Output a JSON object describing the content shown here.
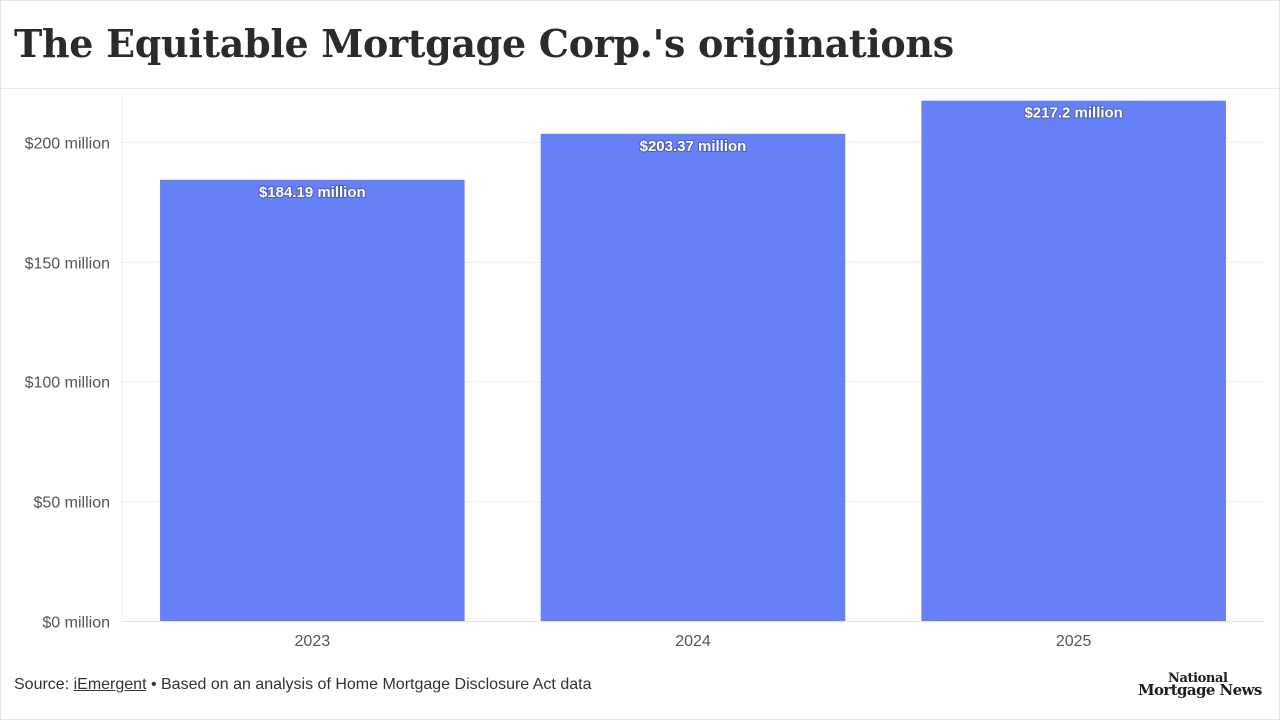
{
  "header": {
    "title": "The Equitable Mortgage Corp.'s originations"
  },
  "chart_data": {
    "type": "bar",
    "title": "The Equitable Mortgage Corp.'s originations",
    "xlabel": "",
    "ylabel": "",
    "categories": [
      "2023",
      "2024",
      "2025"
    ],
    "values": [
      184.19,
      203.37,
      217.2
    ],
    "value_labels": [
      "$184.19 million",
      "$203.37 million",
      "$217.2 million"
    ],
    "unit": "million",
    "ylim": [
      0,
      220
    ],
    "yticks": [
      0,
      50,
      100,
      150,
      200
    ],
    "ytick_labels": [
      "$0 million",
      "$50 million",
      "$100 million",
      "$150 million",
      "$200 million"
    ],
    "grid": true,
    "bar_color": "#6680f5"
  },
  "footer": {
    "source_prefix": "Source: ",
    "source_link": "iEmergent",
    "source_note": " • Based on an analysis of Home Mortgage Disclosure Act data"
  },
  "logo": {
    "line1": "National",
    "line2": "Mortgage News"
  }
}
